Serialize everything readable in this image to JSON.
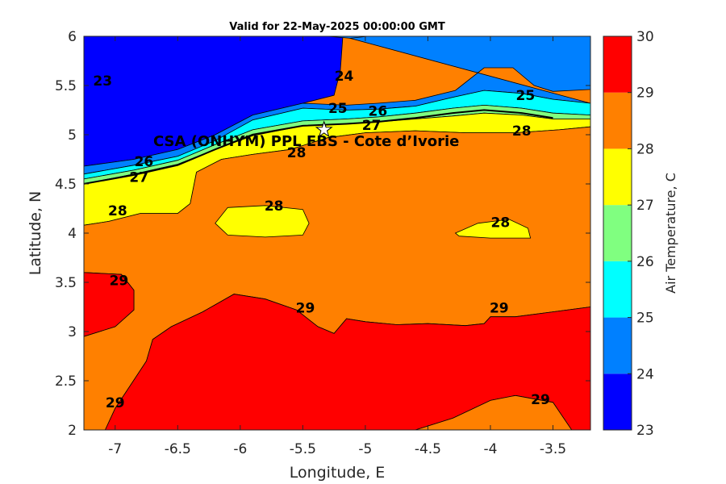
{
  "chart_data": {
    "type": "contour",
    "title": "Valid for 22-May-2025 00:00:00 GMT",
    "xlabel": "Longitude, E",
    "ylabel": "Latitude, N",
    "xlim": [
      -7.25,
      -3.2
    ],
    "ylim": [
      2,
      6
    ],
    "xticks": [
      -7,
      -6.5,
      -6,
      -5.5,
      -5,
      -4.5,
      -4,
      -3.5
    ],
    "yticks": [
      2,
      2.5,
      3,
      3.5,
      4,
      4.5,
      5,
      5.5,
      6
    ],
    "colorbar": {
      "label": "Air Temperature, C",
      "levels": [
        23,
        24,
        25,
        26,
        27,
        28,
        29,
        30
      ],
      "colors": [
        "#0000ff",
        "#0080ff",
        "#00ffff",
        "#80ff80",
        "#ffff00",
        "#ff8000",
        "#ff0000",
        "#800000"
      ]
    },
    "site": {
      "label": "CSA (ONHYM) PPL EBS  - Cote d’Ivorie",
      "lon": -5.33,
      "lat": 5.05
    },
    "contour_labels": [
      {
        "text": "23",
        "lon": -7.1,
        "lat": 5.55
      },
      {
        "text": "24",
        "lon": -5.17,
        "lat": 5.6
      },
      {
        "text": "25",
        "lon": -5.22,
        "lat": 5.27
      },
      {
        "text": "25",
        "lon": -3.72,
        "lat": 5.4
      },
      {
        "text": "26",
        "lon": -4.9,
        "lat": 5.24
      },
      {
        "text": "26",
        "lon": -6.77,
        "lat": 4.73
      },
      {
        "text": "27",
        "lon": -4.95,
        "lat": 5.1
      },
      {
        "text": "27",
        "lon": -6.81,
        "lat": 4.57
      },
      {
        "text": "28",
        "lon": -3.75,
        "lat": 5.04
      },
      {
        "text": "28",
        "lon": -5.55,
        "lat": 4.82
      },
      {
        "text": "28",
        "lon": -6.98,
        "lat": 4.23
      },
      {
        "text": "28",
        "lon": -5.73,
        "lat": 4.28
      },
      {
        "text": "28",
        "lon": -3.92,
        "lat": 4.11
      },
      {
        "text": "29",
        "lon": -6.97,
        "lat": 3.52
      },
      {
        "text": "29",
        "lon": -5.48,
        "lat": 3.24
      },
      {
        "text": "29",
        "lon": -3.93,
        "lat": 3.24
      },
      {
        "text": "29",
        "lon": -3.6,
        "lat": 2.31
      },
      {
        "text": "29",
        "lon": -7.0,
        "lat": 2.28
      }
    ],
    "regions": [
      {
        "level": 23,
        "points": [
          [
            -7.25,
            6
          ],
          [
            -5.18,
            6
          ],
          [
            -5.2,
            5.65
          ],
          [
            -5.25,
            5.4
          ],
          [
            -5.5,
            5.32
          ],
          [
            -5.9,
            5.2
          ],
          [
            -6.2,
            5.0
          ],
          [
            -6.5,
            4.85
          ],
          [
            -6.85,
            4.75
          ],
          [
            -7.25,
            4.68
          ]
        ]
      },
      {
        "level": 24,
        "points": [
          [
            -5.18,
            6
          ],
          [
            -3.2,
            6
          ],
          [
            -3.2,
            5.46
          ],
          [
            -3.5,
            5.44
          ],
          [
            -3.65,
            5.5
          ],
          [
            -3.82,
            5.68
          ],
          [
            -4.05,
            5.68
          ],
          [
            -4.28,
            5.45
          ],
          [
            -4.6,
            5.35
          ],
          [
            -4.9,
            5.32
          ],
          [
            -5.15,
            5.3
          ],
          [
            -5.5,
            5.32
          ],
          [
            -5.9,
            5.2
          ],
          [
            -6.2,
            5.0
          ],
          [
            -6.5,
            4.85
          ],
          [
            -6.85,
            4.75
          ],
          [
            -7.25,
            4.68
          ],
          [
            -7.25,
            4.6
          ],
          [
            -6.85,
            4.69
          ],
          [
            -6.5,
            4.78
          ],
          [
            -6.2,
            4.94
          ],
          [
            -5.9,
            5.15
          ],
          [
            -5.5,
            5.27
          ],
          [
            -5.15,
            5.25
          ],
          [
            -4.9,
            5.26
          ],
          [
            -4.6,
            5.29
          ],
          [
            -4.3,
            5.38
          ],
          [
            -4.05,
            5.45
          ],
          [
            -3.75,
            5.42
          ],
          [
            -3.5,
            5.36
          ],
          [
            -3.2,
            5.32
          ]
        ]
      },
      {
        "level": 24,
        "points": [
          [
            -5.3,
            6
          ],
          [
            -5.12,
            5.98
          ],
          [
            -4.98,
            6
          ]
        ]
      },
      {
        "level": 25,
        "points": [
          [
            -7.25,
            4.6
          ],
          [
            -6.85,
            4.69
          ],
          [
            -6.5,
            4.78
          ],
          [
            -6.2,
            4.94
          ],
          [
            -5.9,
            5.15
          ],
          [
            -5.5,
            5.27
          ],
          [
            -5.15,
            5.25
          ],
          [
            -4.9,
            5.26
          ],
          [
            -4.6,
            5.29
          ],
          [
            -4.3,
            5.38
          ],
          [
            -4.05,
            5.45
          ],
          [
            -3.75,
            5.42
          ],
          [
            -3.5,
            5.36
          ],
          [
            -3.2,
            5.32
          ],
          [
            -3.2,
            5.2
          ],
          [
            -3.5,
            5.22
          ],
          [
            -3.75,
            5.27
          ],
          [
            -4.05,
            5.3
          ],
          [
            -4.3,
            5.27
          ],
          [
            -4.6,
            5.22
          ],
          [
            -4.9,
            5.18
          ],
          [
            -5.15,
            5.16
          ],
          [
            -5.5,
            5.14
          ],
          [
            -5.9,
            5.05
          ],
          [
            -6.2,
            4.9
          ],
          [
            -6.5,
            4.74
          ],
          [
            -6.85,
            4.64
          ],
          [
            -7.25,
            4.55
          ]
        ]
      },
      {
        "level": 26,
        "points": [
          [
            -7.25,
            4.55
          ],
          [
            -6.85,
            4.64
          ],
          [
            -6.5,
            4.74
          ],
          [
            -6.2,
            4.9
          ],
          [
            -5.9,
            5.05
          ],
          [
            -5.5,
            5.14
          ],
          [
            -5.15,
            5.16
          ],
          [
            -4.9,
            5.18
          ],
          [
            -4.6,
            5.22
          ],
          [
            -4.3,
            5.27
          ],
          [
            -4.05,
            5.3
          ],
          [
            -3.75,
            5.27
          ],
          [
            -3.5,
            5.22
          ],
          [
            -3.2,
            5.2
          ],
          [
            -3.2,
            5.16
          ],
          [
            -3.5,
            5.16
          ],
          [
            -3.75,
            5.2
          ],
          [
            -4.05,
            5.22
          ],
          [
            -4.3,
            5.19
          ],
          [
            -4.6,
            5.16
          ],
          [
            -4.9,
            5.13
          ],
          [
            -5.15,
            5.11
          ],
          [
            -5.5,
            5.09
          ],
          [
            -5.9,
            4.99
          ],
          [
            -6.2,
            4.85
          ],
          [
            -6.5,
            4.7
          ],
          [
            -6.85,
            4.6
          ],
          [
            -7.25,
            4.5
          ]
        ]
      },
      {
        "level": 27,
        "points": [
          [
            -7.25,
            4.5
          ],
          [
            -6.85,
            4.6
          ],
          [
            -6.5,
            4.7
          ],
          [
            -6.2,
            4.85
          ],
          [
            -5.9,
            4.99
          ],
          [
            -5.5,
            5.09
          ],
          [
            -5.15,
            5.11
          ],
          [
            -4.9,
            5.13
          ],
          [
            -4.6,
            5.16
          ],
          [
            -4.3,
            5.19
          ],
          [
            -4.05,
            5.22
          ],
          [
            -3.75,
            5.2
          ],
          [
            -3.5,
            5.16
          ],
          [
            -3.2,
            5.16
          ],
          [
            -3.2,
            5.08
          ],
          [
            -3.45,
            5.05
          ],
          [
            -3.8,
            5.02
          ],
          [
            -4.2,
            5.02
          ],
          [
            -4.6,
            5.04
          ],
          [
            -5.0,
            5.02
          ],
          [
            -5.3,
            4.97
          ],
          [
            -5.6,
            4.85
          ],
          [
            -5.9,
            4.8
          ],
          [
            -6.15,
            4.75
          ],
          [
            -6.35,
            4.62
          ],
          [
            -6.4,
            4.3
          ],
          [
            -6.5,
            4.2
          ],
          [
            -6.8,
            4.2
          ],
          [
            -7.05,
            4.12
          ],
          [
            -7.25,
            4.08
          ]
        ]
      },
      {
        "level": 28,
        "points": [
          [
            -7.25,
            4.08
          ],
          [
            -7.05,
            4.12
          ],
          [
            -6.8,
            4.2
          ],
          [
            -6.5,
            4.2
          ],
          [
            -6.4,
            4.3
          ],
          [
            -6.35,
            4.62
          ],
          [
            -6.15,
            4.75
          ],
          [
            -5.9,
            4.8
          ],
          [
            -5.6,
            4.85
          ],
          [
            -5.3,
            4.97
          ],
          [
            -5.0,
            5.02
          ],
          [
            -4.6,
            5.04
          ],
          [
            -4.2,
            5.02
          ],
          [
            -3.8,
            5.02
          ],
          [
            -3.45,
            5.05
          ],
          [
            -3.2,
            5.08
          ],
          [
            -3.2,
            3.25
          ],
          [
            -3.5,
            3.2
          ],
          [
            -3.8,
            3.15
          ],
          [
            -4.0,
            3.15
          ],
          [
            -4.05,
            3.08
          ],
          [
            -4.2,
            3.06
          ],
          [
            -4.5,
            3.08
          ],
          [
            -4.75,
            3.07
          ],
          [
            -5.0,
            3.1
          ],
          [
            -5.15,
            3.13
          ],
          [
            -5.25,
            2.98
          ],
          [
            -5.38,
            3.05
          ],
          [
            -5.55,
            3.22
          ],
          [
            -5.8,
            3.33
          ],
          [
            -6.05,
            3.38
          ],
          [
            -6.3,
            3.2
          ],
          [
            -6.55,
            3.05
          ],
          [
            -6.7,
            2.92
          ],
          [
            -6.75,
            2.7
          ],
          [
            -6.88,
            2.45
          ],
          [
            -7.0,
            2.22
          ],
          [
            -7.08,
            2.0
          ],
          [
            -7.25,
            2.0
          ],
          [
            -7.25,
            2.95
          ],
          [
            -7.0,
            3.05
          ],
          [
            -6.85,
            3.22
          ],
          [
            -6.85,
            3.42
          ],
          [
            -6.95,
            3.58
          ],
          [
            -7.25,
            3.6
          ]
        ]
      },
      {
        "level": 29,
        "points": [
          [
            -7.25,
            3.6
          ],
          [
            -6.95,
            3.58
          ],
          [
            -6.85,
            3.42
          ],
          [
            -6.85,
            3.22
          ],
          [
            -7.0,
            3.05
          ],
          [
            -7.25,
            2.95
          ]
        ]
      },
      {
        "level": 29,
        "points": [
          [
            -7.08,
            2.0
          ],
          [
            -7.0,
            2.22
          ],
          [
            -6.88,
            2.45
          ],
          [
            -6.75,
            2.7
          ],
          [
            -6.7,
            2.92
          ],
          [
            -6.55,
            3.05
          ],
          [
            -6.3,
            3.2
          ],
          [
            -6.05,
            3.38
          ],
          [
            -5.8,
            3.33
          ],
          [
            -5.55,
            3.22
          ],
          [
            -5.38,
            3.05
          ],
          [
            -5.25,
            2.98
          ],
          [
            -5.15,
            3.13
          ],
          [
            -5.0,
            3.1
          ],
          [
            -4.75,
            3.07
          ],
          [
            -4.5,
            3.08
          ],
          [
            -4.2,
            3.06
          ],
          [
            -4.05,
            3.08
          ],
          [
            -4.0,
            3.15
          ],
          [
            -3.8,
            3.15
          ],
          [
            -3.5,
            3.2
          ],
          [
            -3.2,
            3.25
          ],
          [
            -3.2,
            2.0
          ],
          [
            -3.35,
            2.0
          ],
          [
            -3.5,
            2.28
          ],
          [
            -3.8,
            2.35
          ],
          [
            -4.0,
            2.3
          ],
          [
            -4.3,
            2.12
          ],
          [
            -4.6,
            2.0
          ]
        ]
      },
      {
        "level": 28,
        "points": [
          [
            -4.6,
            2.0
          ],
          [
            -4.3,
            2.12
          ],
          [
            -4.0,
            2.3
          ],
          [
            -3.8,
            2.35
          ],
          [
            -3.5,
            2.28
          ],
          [
            -3.35,
            2.0
          ]
        ]
      },
      {
        "level": 27,
        "points": [
          [
            -6.2,
            4.1
          ],
          [
            -6.1,
            4.26
          ],
          [
            -5.8,
            4.28
          ],
          [
            -5.5,
            4.24
          ],
          [
            -5.45,
            4.1
          ],
          [
            -5.5,
            3.98
          ],
          [
            -5.8,
            3.96
          ],
          [
            -6.1,
            3.98
          ]
        ]
      },
      {
        "level": 27,
        "points": [
          [
            -4.28,
            4.0
          ],
          [
            -4.1,
            4.1
          ],
          [
            -3.85,
            4.14
          ],
          [
            -3.7,
            4.05
          ],
          [
            -3.68,
            3.95
          ],
          [
            -4.0,
            3.95
          ],
          [
            -4.25,
            3.97
          ]
        ]
      }
    ]
  }
}
